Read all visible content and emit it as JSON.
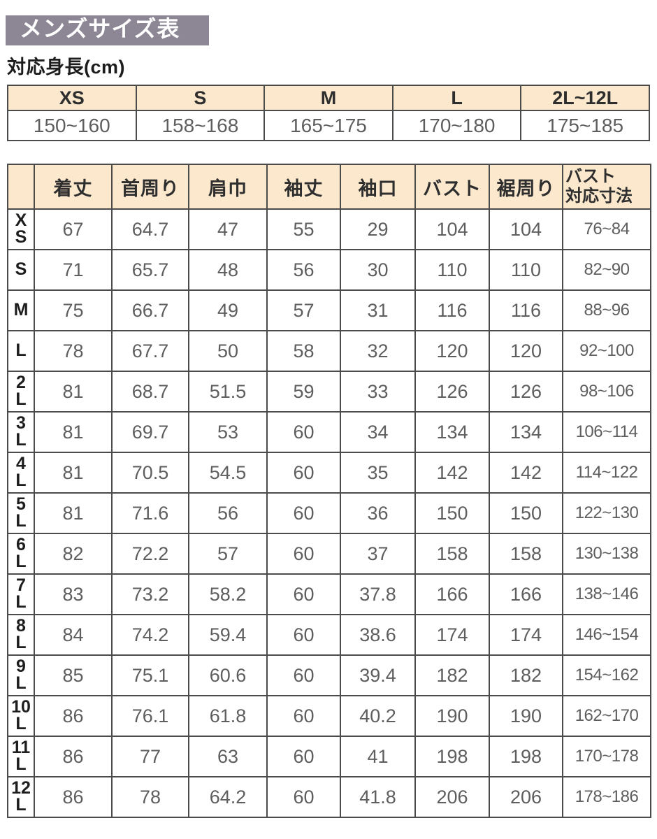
{
  "page": {
    "title": "メンズサイズ表",
    "subtitle": "対応身長(cm)"
  },
  "height_table": {
    "columns": [
      "XS",
      "S",
      "M",
      "L",
      "2L~12L"
    ],
    "values": [
      "150~160",
      "158~168",
      "165~175",
      "170~180",
      "175~185"
    ]
  },
  "size_table": {
    "corner": "",
    "columns": [
      "着丈",
      "首周り",
      "肩巾",
      "袖丈",
      "袖口",
      "バスト",
      "裾周り",
      "バスト\n対応寸法"
    ],
    "rows": [
      {
        "size": "XS",
        "size_display": "X\nS",
        "values": [
          "67",
          "64.7",
          "47",
          "55",
          "29",
          "104",
          "104",
          "76~84"
        ]
      },
      {
        "size": "S",
        "size_display": "S",
        "values": [
          "71",
          "65.7",
          "48",
          "56",
          "30",
          "110",
          "110",
          "82~90"
        ]
      },
      {
        "size": "M",
        "size_display": "M",
        "values": [
          "75",
          "66.7",
          "49",
          "57",
          "31",
          "116",
          "116",
          "88~96"
        ]
      },
      {
        "size": "L",
        "size_display": "L",
        "values": [
          "78",
          "67.7",
          "50",
          "58",
          "32",
          "120",
          "120",
          "92~100"
        ]
      },
      {
        "size": "2L",
        "size_display": "2\nL",
        "values": [
          "81",
          "68.7",
          "51.5",
          "59",
          "33",
          "126",
          "126",
          "98~106"
        ]
      },
      {
        "size": "3L",
        "size_display": "3\nL",
        "values": [
          "81",
          "69.7",
          "53",
          "60",
          "34",
          "134",
          "134",
          "106~114"
        ]
      },
      {
        "size": "4L",
        "size_display": "4\nL",
        "values": [
          "81",
          "70.5",
          "54.5",
          "60",
          "35",
          "142",
          "142",
          "114~122"
        ]
      },
      {
        "size": "5L",
        "size_display": "5\nL",
        "values": [
          "81",
          "71.6",
          "56",
          "60",
          "36",
          "150",
          "150",
          "122~130"
        ]
      },
      {
        "size": "6L",
        "size_display": "6\nL",
        "values": [
          "82",
          "72.2",
          "57",
          "60",
          "37",
          "158",
          "158",
          "130~138"
        ]
      },
      {
        "size": "7L",
        "size_display": "7\nL",
        "values": [
          "83",
          "73.2",
          "58.2",
          "60",
          "37.8",
          "166",
          "166",
          "138~146"
        ]
      },
      {
        "size": "8L",
        "size_display": "8\nL",
        "values": [
          "84",
          "74.2",
          "59.4",
          "60",
          "38.6",
          "174",
          "174",
          "146~154"
        ]
      },
      {
        "size": "9L",
        "size_display": "9\nL",
        "values": [
          "85",
          "75.1",
          "60.6",
          "60",
          "39.4",
          "182",
          "182",
          "154~162"
        ]
      },
      {
        "size": "10L",
        "size_display": "10\nL",
        "values": [
          "86",
          "76.1",
          "61.8",
          "60",
          "40.2",
          "190",
          "190",
          "162~170"
        ]
      },
      {
        "size": "11L",
        "size_display": "11\nL",
        "values": [
          "86",
          "77",
          "63",
          "60",
          "41",
          "198",
          "198",
          "170~178"
        ]
      },
      {
        "size": "12L",
        "size_display": "12\nL",
        "values": [
          "86",
          "78",
          "64.2",
          "60",
          "41.8",
          "206",
          "206",
          "178~186"
        ]
      }
    ]
  },
  "colors": {
    "title_bar_bg": "#8d8795",
    "title_text": "#ffffff",
    "header_bg": "#fbe8cd",
    "border": "#4b4b4b",
    "value_text": "#5e5e5e",
    "label_text": "#1e1e1e"
  }
}
